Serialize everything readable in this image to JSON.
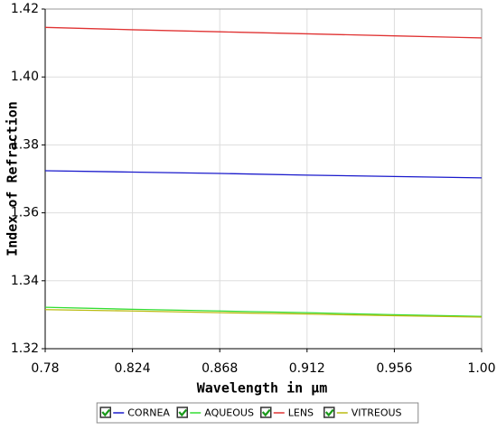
{
  "chart_data": {
    "type": "line",
    "x_label": "Wavelength in µm",
    "y_label": "Index of Refraction",
    "x": [
      0.78,
      0.824,
      0.868,
      0.912,
      0.956,
      1.0
    ],
    "series": [
      {
        "name": "CORNEA",
        "color": "#1a1acc",
        "values": [
          1.3724,
          1.372,
          1.3716,
          1.3711,
          1.3707,
          1.3703
        ]
      },
      {
        "name": "AQUEOUS",
        "color": "#33dd33",
        "values": [
          1.3322,
          1.3316,
          1.3311,
          1.3306,
          1.33,
          1.3295
        ]
      },
      {
        "name": "LENS",
        "color": "#e03333",
        "values": [
          1.4146,
          1.4139,
          1.4133,
          1.4127,
          1.4121,
          1.4115
        ]
      },
      {
        "name": "VITREOUS",
        "color": "#bbbb11",
        "values": [
          1.3315,
          1.3311,
          1.3306,
          1.3302,
          1.3297,
          1.3293
        ]
      }
    ],
    "xlim": [
      0.78,
      1.0
    ],
    "xticks": [
      0.78,
      0.824,
      0.868,
      0.912,
      0.956,
      {
        "value": 1.0,
        "label": "1.00"
      }
    ],
    "ylim": [
      1.32,
      1.42
    ],
    "yticks": [
      1.32,
      1.34,
      1.36,
      1.38,
      {
        "value": 1.4,
        "label": "1.40"
      },
      1.42
    ],
    "grid": true,
    "legend": "bottom"
  }
}
